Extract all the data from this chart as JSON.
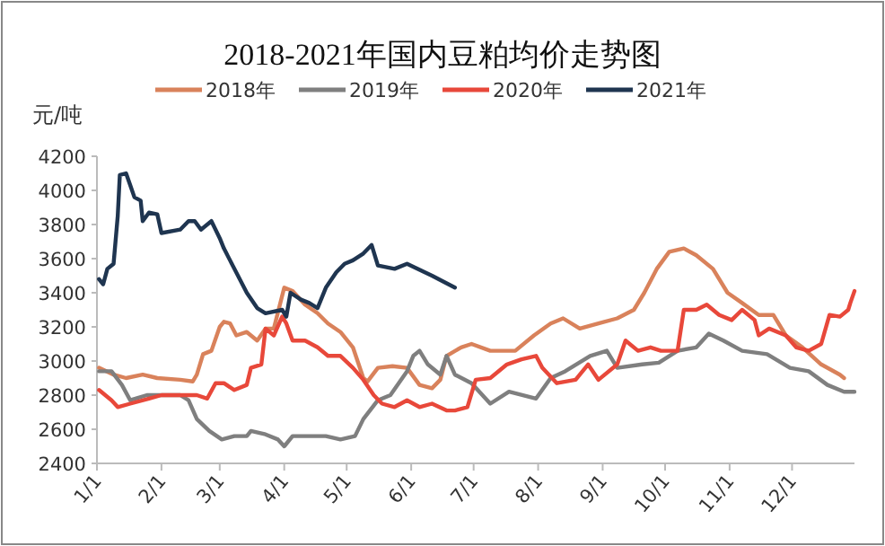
{
  "chart_data": {
    "type": "line",
    "title": "2018-2021年国内豆粕均价走势图",
    "ylabel": "元/吨",
    "legend": "top",
    "xlim": [
      "--01-01",
      "--12-31"
    ],
    "ylim": [
      2400,
      4200
    ],
    "xticks": [
      {
        "value": "--01-01",
        "label": "1/1"
      },
      {
        "value": "--02-01",
        "label": "2/1"
      },
      {
        "value": "--03-01",
        "label": "3/1"
      },
      {
        "value": "--04-01",
        "label": "4/1"
      },
      {
        "value": "--05-01",
        "label": "5/1"
      },
      {
        "value": "--06-01",
        "label": "6/1"
      },
      {
        "value": "--07-01",
        "label": "7/1"
      },
      {
        "value": "--08-01",
        "label": "8/1"
      },
      {
        "value": "--09-01",
        "label": "9/1"
      },
      {
        "value": "--10-01",
        "label": "10/1"
      },
      {
        "value": "--11-01",
        "label": "11/1"
      },
      {
        "value": "--12-01",
        "label": "12/1"
      }
    ],
    "yticks": [
      2400,
      2600,
      2800,
      3000,
      3200,
      3400,
      3600,
      3800,
      4000,
      4200
    ],
    "series": [
      {
        "name": "2018年",
        "color": "#d9825b",
        "x": [
          "--01-02",
          "--01-09",
          "--01-15",
          "--01-23",
          "--01-30",
          "--02-10",
          "--02-16",
          "--02-18",
          "--02-21",
          "--02-25",
          "--03-01",
          "--03-03",
          "--03-06",
          "--03-09",
          "--03-14",
          "--03-19",
          "--03-23",
          "--03-27",
          "--04-01",
          "--04-05",
          "--04-11",
          "--04-17",
          "--04-22",
          "--04-28",
          "--05-04",
          "--05-09",
          "--05-11",
          "--05-16",
          "--05-23",
          "--05-30",
          "--06-05",
          "--06-11",
          "--06-15",
          "--06-18",
          "--06-25",
          "--06-30",
          "--07-09",
          "--07-21",
          "--07-30",
          "--08-07",
          "--08-13",
          "--08-21",
          "--08-30",
          "--09-08",
          "--09-16",
          "--09-21",
          "--09-27",
          "--10-03",
          "--10-10",
          "--10-16",
          "--10-24",
          "--10-31",
          "--11-07",
          "--11-15",
          "--11-22",
          "--11-28",
          "--12-06",
          "--12-15",
          "--12-24",
          "--12-26"
        ],
        "values": [
          2960,
          2920,
          2900,
          2920,
          2900,
          2890,
          2880,
          2920,
          3040,
          3060,
          3200,
          3230,
          3220,
          3150,
          3170,
          3120,
          3190,
          3190,
          3430,
          3410,
          3330,
          3280,
          3220,
          3170,
          3080,
          2900,
          2880,
          2960,
          2970,
          2960,
          2860,
          2840,
          2890,
          3030,
          3080,
          3100,
          3060,
          3060,
          3150,
          3220,
          3250,
          3190,
          3220,
          3250,
          3300,
          3400,
          3540,
          3640,
          3660,
          3620,
          3540,
          3400,
          3340,
          3270,
          3270,
          3150,
          3080,
          2980,
          2920,
          2900
        ]
      },
      {
        "name": "2019年",
        "color": "#7f7f7f",
        "x": [
          "--01-02",
          "--01-08",
          "--01-13",
          "--01-17",
          "--01-25",
          "--02-01",
          "--02-10",
          "--02-14",
          "--02-18",
          "--02-24",
          "--03-02",
          "--03-08",
          "--03-14",
          "--03-16",
          "--03-23",
          "--03-29",
          "--04-01",
          "--04-05",
          "--04-14",
          "--04-21",
          "--04-28",
          "--05-05",
          "--05-09",
          "--05-16",
          "--05-22",
          "--05-26",
          "--05-30",
          "--06-02",
          "--06-05",
          "--06-09",
          "--06-15",
          "--06-18",
          "--06-22",
          "--06-30",
          "--07-09",
          "--07-18",
          "--07-31",
          "--08-07",
          "--08-14",
          "--08-26",
          "--09-03",
          "--09-08",
          "--09-20",
          "--09-28",
          "--10-07",
          "--10-16",
          "--10-22",
          "--10-29",
          "--11-07",
          "--11-19",
          "--11-30",
          "--12-09",
          "--12-18",
          "--12-26",
          "--12-31"
        ],
        "values": [
          2940,
          2940,
          2860,
          2770,
          2800,
          2800,
          2800,
          2770,
          2660,
          2590,
          2540,
          2560,
          2560,
          2590,
          2570,
          2540,
          2500,
          2560,
          2560,
          2560,
          2540,
          2560,
          2660,
          2770,
          2800,
          2870,
          2940,
          3030,
          3060,
          2980,
          2920,
          3030,
          2920,
          2870,
          2750,
          2820,
          2780,
          2900,
          2940,
          3030,
          3060,
          2960,
          2980,
          2990,
          3060,
          3080,
          3160,
          3120,
          3060,
          3040,
          2960,
          2940,
          2860,
          2820,
          2820
        ]
      },
      {
        "name": "2020年",
        "color": "#e8483a",
        "x": [
          "--01-02",
          "--01-08",
          "--01-11",
          "--01-17",
          "--01-26",
          "--02-01",
          "--02-12",
          "--02-18",
          "--02-23",
          "--02-27",
          "--03-03",
          "--03-08",
          "--03-14",
          "--03-16",
          "--03-21",
          "--03-23",
          "--03-27",
          "--03-31",
          "--04-02",
          "--04-05",
          "--04-11",
          "--04-17",
          "--04-22",
          "--04-28",
          "--05-04",
          "--05-09",
          "--05-14",
          "--05-18",
          "--05-24",
          "--05-30",
          "--06-05",
          "--06-11",
          "--06-18",
          "--06-22",
          "--06-28",
          "--07-02",
          "--07-09",
          "--07-17",
          "--07-24",
          "--07-31",
          "--08-03",
          "--08-10",
          "--08-19",
          "--08-25",
          "--08-30",
          "--09-08",
          "--09-12",
          "--09-18",
          "--09-24",
          "--09-29",
          "--10-07",
          "--10-10",
          "--10-16",
          "--10-21",
          "--10-27",
          "--11-02",
          "--11-07",
          "--11-13",
          "--11-15",
          "--11-20",
          "--11-28",
          "--12-03",
          "--12-09",
          "--12-15",
          "--12-19",
          "--12-24",
          "--12-28",
          "--12-29",
          "--12-31"
        ],
        "values": [
          2830,
          2770,
          2730,
          2750,
          2780,
          2800,
          2800,
          2800,
          2780,
          2870,
          2870,
          2830,
          2860,
          2960,
          2980,
          3190,
          3150,
          3260,
          3220,
          3120,
          3120,
          3080,
          3030,
          3030,
          2960,
          2890,
          2800,
          2750,
          2730,
          2770,
          2730,
          2750,
          2710,
          2710,
          2730,
          2890,
          2900,
          2980,
          3010,
          3030,
          2960,
          2870,
          2890,
          2980,
          2890,
          2980,
          3120,
          3060,
          3080,
          3060,
          3060,
          3300,
          3300,
          3330,
          3270,
          3240,
          3300,
          3240,
          3150,
          3190,
          3150,
          3080,
          3060,
          3100,
          3270,
          3260,
          3300,
          3340,
          3410
        ]
      },
      {
        "name": "2021年",
        "color": "#1f3550",
        "x": [
          "--01-02",
          "--01-04",
          "--01-06",
          "--01-09",
          "--01-11",
          "--01-12",
          "--01-15",
          "--01-17",
          "--01-19",
          "--01-22",
          "--01-23",
          "--01-26",
          "--01-30",
          "--02-01",
          "--02-10",
          "--02-14",
          "--02-17",
          "--02-20",
          "--02-25",
          "--03-01",
          "--03-03",
          "--03-14",
          "--03-19",
          "--03-23",
          "--03-31",
          "--04-02",
          "--04-04",
          "--04-09",
          "--04-13",
          "--04-17",
          "--04-21",
          "--04-26",
          "--04-30",
          "--05-04",
          "--05-09",
          "--05-13",
          "--05-16",
          "--05-24",
          "--05-30",
          "--06-11",
          "--06-22"
        ],
        "values": [
          3480,
          3450,
          3540,
          3570,
          3850,
          4090,
          4100,
          4030,
          3960,
          3940,
          3820,
          3870,
          3860,
          3750,
          3770,
          3820,
          3820,
          3770,
          3820,
          3720,
          3660,
          3400,
          3310,
          3280,
          3300,
          3260,
          3400,
          3360,
          3340,
          3310,
          3430,
          3520,
          3570,
          3590,
          3630,
          3680,
          3560,
          3540,
          3570,
          3500,
          3430
        ]
      }
    ]
  }
}
